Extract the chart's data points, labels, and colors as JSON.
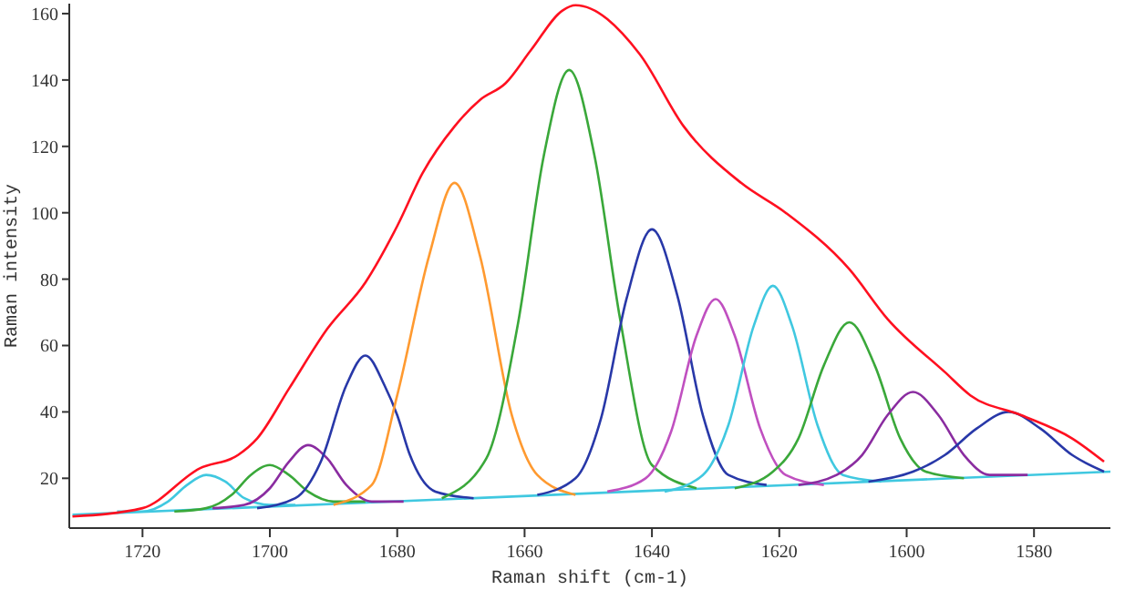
{
  "chart_data": {
    "type": "line",
    "xlabel": "Raman shift (cm-1)",
    "ylabel": "Raman intensity",
    "xlim": [
      1731.5,
      1568
    ],
    "xticks": [
      1720,
      1700,
      1680,
      1660,
      1640,
      1620,
      1600,
      1580
    ],
    "ylim": [
      5,
      163
    ],
    "yticks": [
      20,
      40,
      60,
      80,
      100,
      120,
      140,
      160
    ],
    "grid": false,
    "marker": "none",
    "line_style": "solid",
    "series": [
      {
        "color": "#40c8e0",
        "x": [
          1731,
          1568
        ],
        "values": [
          9,
          22
        ]
      },
      {
        "color": "#40c8e0",
        "x": [
          1724,
          1720,
          1716,
          1713,
          1710,
          1707,
          1704,
          1700,
          1696
        ],
        "values": [
          10,
          10,
          13,
          18,
          21,
          19,
          14,
          12,
          12
        ]
      },
      {
        "color": "#3aa83a",
        "x": [
          1715,
          1710,
          1706,
          1703,
          1700,
          1697,
          1694,
          1690,
          1685
        ],
        "values": [
          10,
          11,
          15,
          21,
          24,
          21,
          16,
          13,
          13
        ]
      },
      {
        "color": "#8a2ca0",
        "x": [
          1709,
          1704,
          1700,
          1697,
          1694,
          1691,
          1688,
          1684,
          1679
        ],
        "values": [
          11,
          12,
          17,
          25,
          30,
          26,
          18,
          13,
          13
        ]
      },
      {
        "color": "#2838a8",
        "x": [
          1702,
          1696,
          1692,
          1688,
          1685,
          1682,
          1680,
          1678,
          1674,
          1668
        ],
        "values": [
          11,
          14,
          25,
          48,
          57,
          48,
          39,
          27,
          16,
          14
        ]
      },
      {
        "color": "#ff9a30",
        "x": [
          1690,
          1684,
          1680,
          1675,
          1671,
          1667,
          1662,
          1658,
          1652
        ],
        "values": [
          12,
          18,
          45,
          87,
          109,
          87,
          39,
          21,
          15
        ]
      },
      {
        "color": "#3aa83a",
        "x": [
          1673,
          1666,
          1661,
          1657,
          1653,
          1649,
          1645,
          1640,
          1633
        ],
        "values": [
          14,
          26,
          67,
          117,
          143,
          117,
          68,
          24,
          17
        ]
      },
      {
        "color": "#2838a8",
        "x": [
          1658,
          1652,
          1648,
          1644,
          1640,
          1636,
          1632,
          1628,
          1622
        ],
        "values": [
          15,
          20,
          38,
          74,
          95,
          75,
          39,
          21,
          18
        ]
      },
      {
        "color": "#c050c0",
        "x": [
          1647,
          1641,
          1637,
          1633,
          1630,
          1627,
          1623,
          1619,
          1613
        ],
        "values": [
          16,
          20,
          34,
          63,
          74,
          63,
          35,
          21,
          18
        ]
      },
      {
        "color": "#40c8e0",
        "x": [
          1638,
          1632,
          1628,
          1624,
          1621,
          1618,
          1614,
          1610,
          1604
        ],
        "values": [
          16,
          21,
          36,
          66,
          78,
          66,
          36,
          21,
          19
        ]
      },
      {
        "color": "#3aa83a",
        "x": [
          1627,
          1621,
          1617,
          1613,
          1609,
          1605,
          1601,
          1597,
          1591
        ],
        "values": [
          17,
          22,
          32,
          54,
          67,
          54,
          32,
          22,
          20
        ]
      },
      {
        "color": "#8a2ca0",
        "x": [
          1617,
          1611,
          1607,
          1603,
          1599,
          1595,
          1591,
          1587,
          1581
        ],
        "values": [
          18,
          21,
          27,
          39,
          46,
          39,
          27,
          21,
          21
        ]
      },
      {
        "color": "#2838a8",
        "x": [
          1606,
          1599,
          1594,
          1589,
          1584,
          1579,
          1574,
          1569
        ],
        "values": [
          19,
          22,
          27,
          35,
          40,
          35,
          27,
          22
        ]
      },
      {
        "color": "#ff1020",
        "x": [
          1731,
          1720,
          1711,
          1705,
          1702,
          1697,
          1691,
          1685,
          1680,
          1676,
          1671,
          1667,
          1663,
          1659,
          1654,
          1652,
          1642,
          1635,
          1626,
          1619,
          1609,
          1603,
          1594,
          1590,
          1582,
          1574,
          1569
        ],
        "values": [
          8.5,
          11,
          23,
          27,
          32,
          47,
          65,
          79,
          96,
          112,
          126,
          134,
          139,
          149,
          161,
          162.5,
          148,
          126,
          109,
          100,
          83,
          68,
          52,
          45,
          39,
          32,
          25
        ]
      }
    ]
  }
}
